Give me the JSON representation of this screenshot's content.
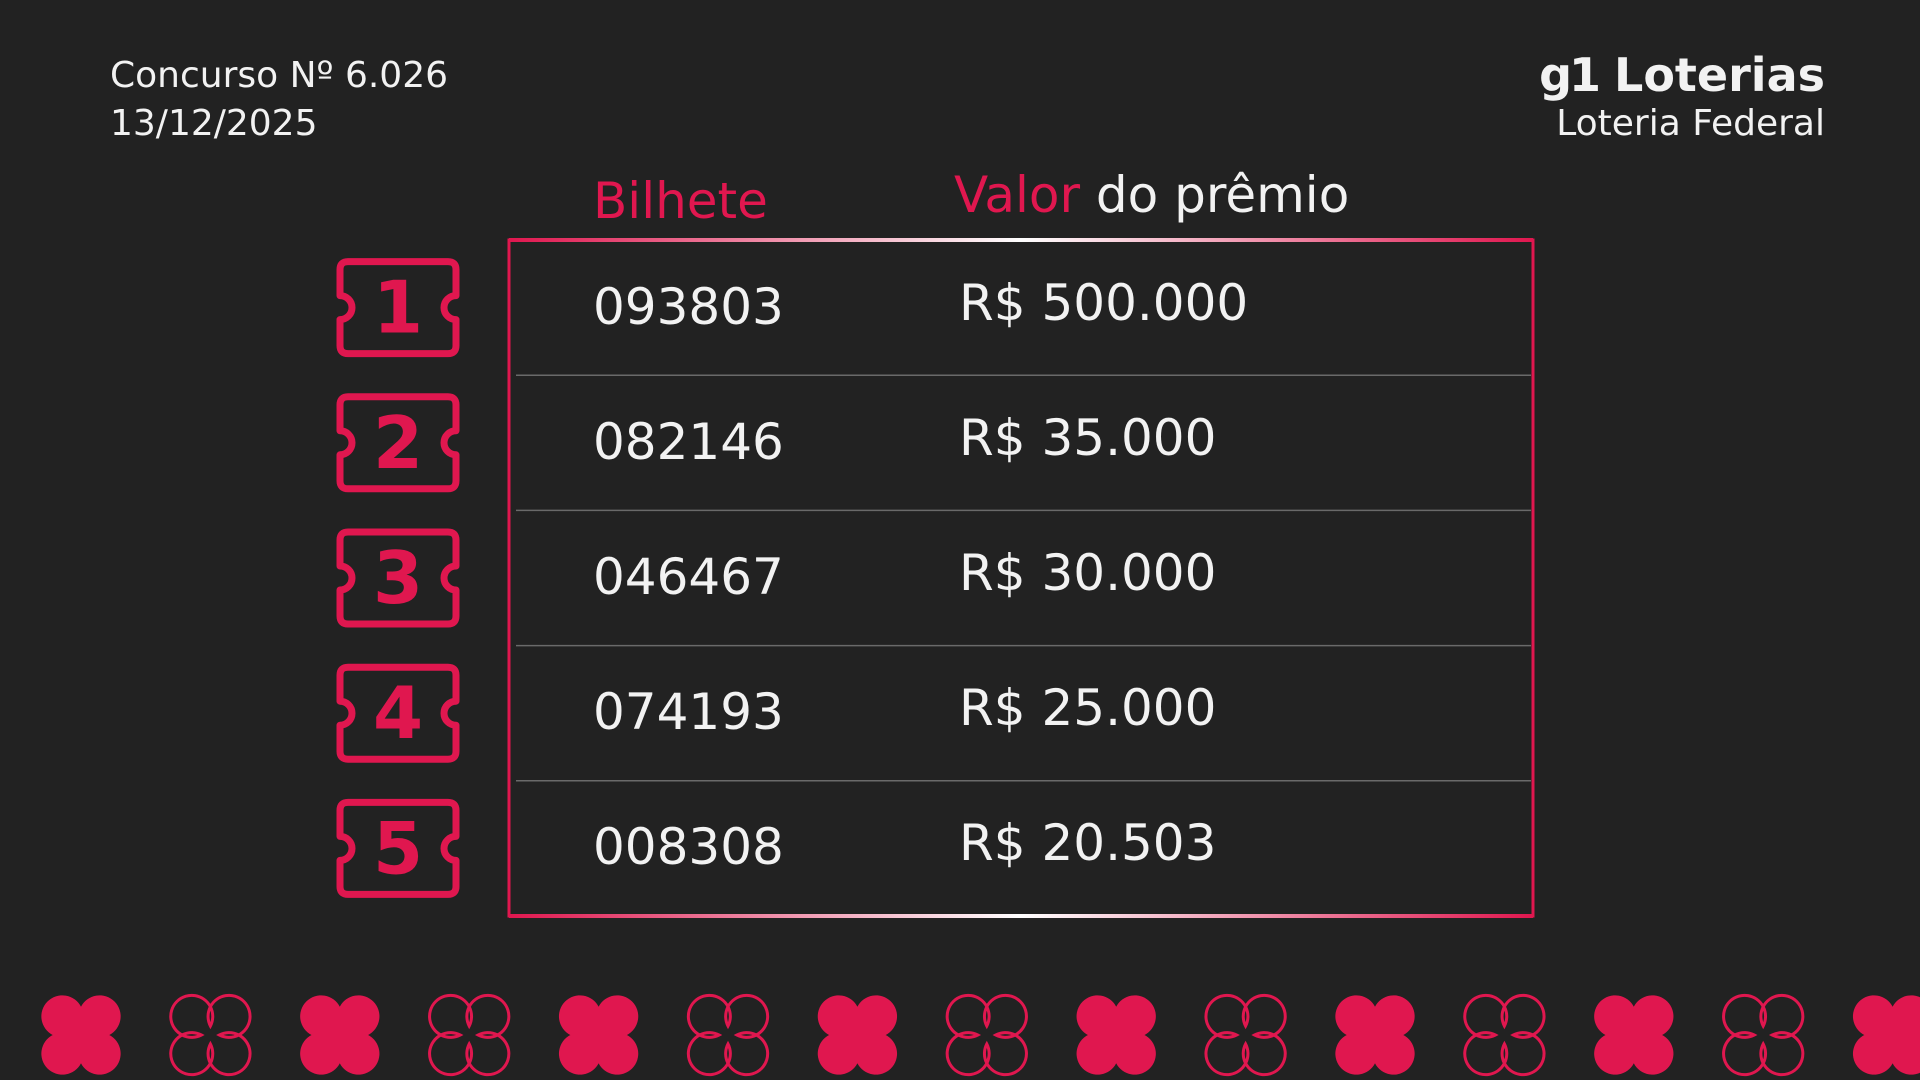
{
  "header": {
    "contest": "Concurso Nº 6.026",
    "date": "13/12/2025",
    "logo": "g1",
    "brand": "Loterias",
    "subtitle": "Loteria Federal"
  },
  "table": {
    "columns": {
      "ticket": "Bilhete",
      "prize_highlight": "Valor",
      "prize_rest": "do prêmio"
    },
    "rows": [
      {
        "rank": "1",
        "ticket": "093803",
        "prize": "R$ 500.000"
      },
      {
        "rank": "2",
        "ticket": "082146",
        "prize": "R$ 35.000"
      },
      {
        "rank": "3",
        "ticket": "046467",
        "prize": "R$ 30.000"
      },
      {
        "rank": "4",
        "ticket": "074193",
        "prize": "R$ 25.000"
      },
      {
        "rank": "5",
        "ticket": "008308",
        "prize": "R$ 20.503"
      }
    ]
  }
}
